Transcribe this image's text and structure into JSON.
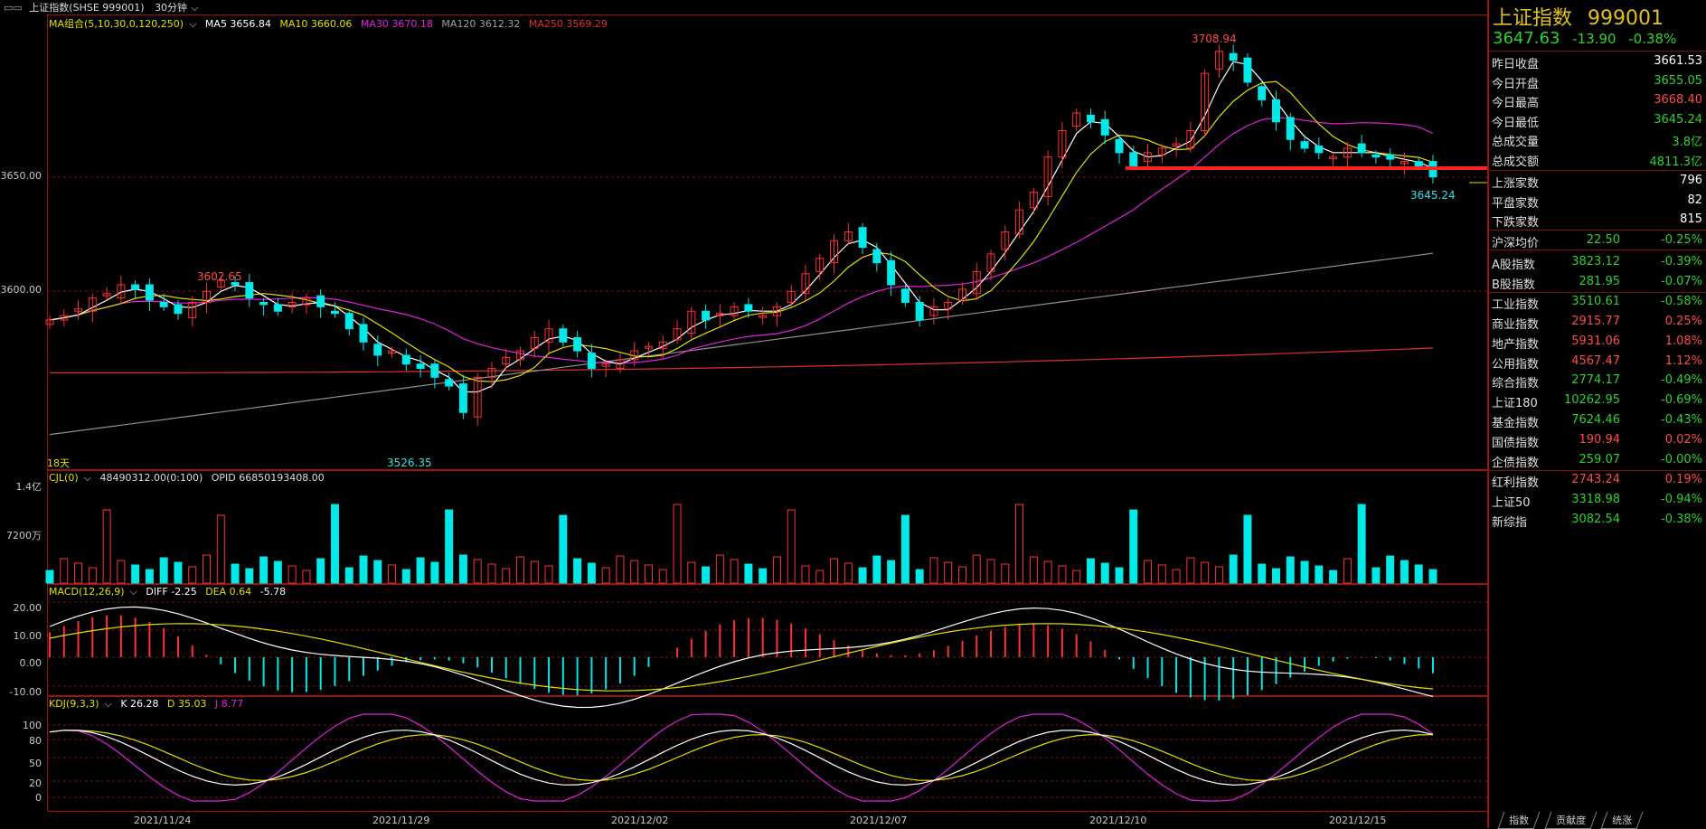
{
  "header": {
    "name": "上证指数(SHSE 999001)",
    "period": "30分钟"
  },
  "ma": {
    "title": "MA组合(5,10,30,0,120,250)",
    "ma5": "MA5 3656.84",
    "ma10": "MA10 3660.06",
    "ma30": "MA30 3670.18",
    "ma120": "MA120 3612.32",
    "ma250": "MA250 3569.29"
  },
  "price_axis": {
    "a": "3650.00",
    "b": "3600.00"
  },
  "annotations": {
    "high": "3708.94",
    "low": "3526.35",
    "local_high": "3602.65",
    "last_low": "3645.24",
    "days": "18天"
  },
  "vol": {
    "title": "CJL(0)",
    "vals": "48490312.00(0:100)",
    "opid": "OPID 66850193408.00",
    "y1": "1.4亿",
    "y2": "7200万"
  },
  "macd": {
    "title": "MACD(12,26,9)",
    "diff": "DIFF -2.25",
    "dea": "DEA 0.64",
    "macd": "-5.78",
    "y": [
      "20.00",
      "10.00",
      "0.00",
      "-10.00"
    ]
  },
  "kdj": {
    "title": "KDJ(9,3,3)",
    "k": "K 26.28",
    "d": "D 35.03",
    "j": "J 8.77",
    "y": [
      "100",
      "80",
      "50",
      "20",
      "0"
    ]
  },
  "dates": [
    "2021/11/24",
    "2021/11/29",
    "2021/12/02",
    "2021/12/07",
    "2021/12/10",
    "2021/12/15"
  ],
  "side": {
    "title": "上证指数",
    "code": "999001",
    "price": "3647.63",
    "chg": "-13.90",
    "pct": "-0.38%",
    "stats": [
      {
        "label": "昨日收盘",
        "value": "3661.53",
        "color": "#ffffff"
      },
      {
        "label": "今日开盘",
        "value": "3655.05",
        "color": "#2fd12f"
      },
      {
        "label": "今日最高",
        "value": "3668.40",
        "color": "#ff4b4b"
      },
      {
        "label": "今日最低",
        "value": "3645.24",
        "color": "#2fd12f"
      },
      {
        "label": "总成交量",
        "value": "3.8亿",
        "color": "#2fd12f"
      },
      {
        "label": "总成交额",
        "value": "4811.3亿",
        "color": "#2fd12f"
      }
    ],
    "breadth": [
      {
        "label": "上涨家数",
        "value": "796"
      },
      {
        "label": "平盘家数",
        "value": "82"
      },
      {
        "label": "下跌家数",
        "value": "815"
      }
    ],
    "avg": {
      "label": "沪深均价",
      "value": "22.50",
      "pct": "-0.25%"
    },
    "indices": [
      {
        "label": "A股指数",
        "value": "3823.12",
        "pct": "-0.39%",
        "color": "#2fd12f"
      },
      {
        "label": "B股指数",
        "value": "281.95",
        "pct": "-0.07%",
        "color": "#2fd12f"
      },
      {
        "label": "工业指数",
        "value": "3510.61",
        "pct": "-0.58%",
        "color": "#2fd12f"
      },
      {
        "label": "商业指数",
        "value": "2915.77",
        "pct": "0.25%",
        "color": "#ff4b4b"
      },
      {
        "label": "地产指数",
        "value": "5931.06",
        "pct": "1.08%",
        "color": "#ff4b4b"
      },
      {
        "label": "公用指数",
        "value": "4567.47",
        "pct": "1.12%",
        "color": "#ff4b4b"
      },
      {
        "label": "综合指数",
        "value": "2774.17",
        "pct": "-0.49%",
        "color": "#2fd12f"
      },
      {
        "label": "上证180",
        "value": "10262.95",
        "pct": "-0.69%",
        "color": "#2fd12f"
      },
      {
        "label": "基金指数",
        "value": "7624.46",
        "pct": "-0.43%",
        "color": "#2fd12f"
      },
      {
        "label": "国债指数",
        "value": "190.94",
        "pct": "0.02%",
        "color": "#ff4b4b"
      },
      {
        "label": "企债指数",
        "value": "259.07",
        "pct": "-0.00%",
        "color": "#2fd12f"
      },
      {
        "label": "红利指数",
        "value": "2743.24",
        "pct": "0.19%",
        "color": "#ff4b4b"
      },
      {
        "label": "上证50",
        "value": "3318.98",
        "pct": "-0.94%",
        "color": "#2fd12f"
      },
      {
        "label": "新综指",
        "value": "3082.54",
        "pct": "-0.38%",
        "color": "#2fd12f"
      }
    ]
  },
  "tabs": [
    "指数",
    "贡献度",
    "统涨"
  ],
  "colors": {
    "up": "#ff3030",
    "down": "#00e8e8",
    "ma5": "#ffffff",
    "ma10": "#e0e000",
    "ma30": "#e020e0",
    "ma120": "#909090",
    "ma250": "#e03030",
    "border": "#a01010"
  },
  "chart_data": {
    "type": "candlestick",
    "interval": "30min",
    "close_series": [
      3582,
      3584,
      3587,
      3592,
      3594,
      3598,
      3596,
      3591,
      3588,
      3585,
      3590,
      3595,
      3600,
      3598,
      3592,
      3589,
      3586,
      3590,
      3592,
      3588,
      3585,
      3578,
      3572,
      3566,
      3568,
      3562,
      3560,
      3556,
      3552,
      3540,
      3556,
      3560,
      3565,
      3568,
      3574,
      3578,
      3572,
      3568,
      3560,
      3562,
      3564,
      3568,
      3570,
      3572,
      3578,
      3586,
      3582,
      3585,
      3588,
      3586,
      3584,
      3588,
      3595,
      3603,
      3610,
      3618,
      3622,
      3615,
      3608,
      3598,
      3590,
      3582,
      3588,
      3590,
      3596,
      3604,
      3612,
      3622,
      3632,
      3640,
      3656,
      3668,
      3676,
      3672,
      3666,
      3658,
      3652,
      3658,
      3660,
      3662,
      3668,
      3694,
      3704,
      3700,
      3690,
      3682,
      3672,
      3664,
      3660,
      3658,
      3656,
      3660,
      3658,
      3656,
      3655,
      3654,
      3652,
      3647
    ],
    "ma5_last": 3656.84,
    "ma10_last": 3660.06,
    "ma30_last": 3670.18,
    "ma120_last": 3612.32,
    "ma250_last": 3569.29,
    "high": 3708.94,
    "low": 3526.35,
    "last_low": 3645.24
  }
}
